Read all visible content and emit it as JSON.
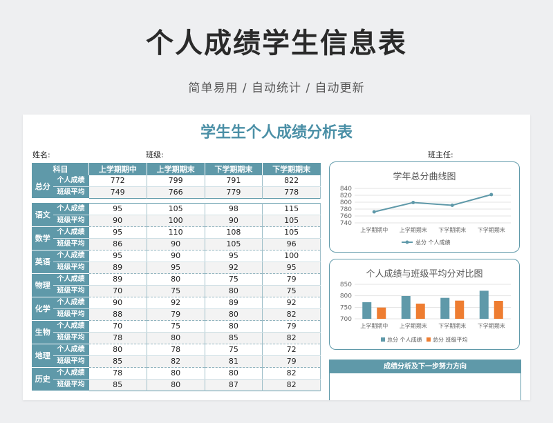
{
  "header": {
    "title": "个人成绩学生信息表",
    "subtitle": "简单易用 / 自动统计 / 自动更新"
  },
  "sheet": {
    "title": "学生生个人成绩分析表",
    "name_label": "姓名:",
    "class_label": "班级:",
    "teacher_label": "班主任:"
  },
  "table": {
    "subject_header": "科目",
    "columns": [
      "上学期期中",
      "上学期期末",
      "下学期期末",
      "下学期期末"
    ],
    "total": {
      "subject": "总分",
      "personal_label": "个人成绩",
      "average_label": "班级平均",
      "personal": [
        "772",
        "799",
        "791",
        "822"
      ],
      "average": [
        "749",
        "766",
        "779",
        "778"
      ]
    },
    "subjects": [
      {
        "subject": "语文",
        "personal_label": "个人成绩",
        "average_label": "班级平均",
        "personal": [
          "95",
          "105",
          "98",
          "115"
        ],
        "average": [
          "90",
          "100",
          "90",
          "105"
        ]
      },
      {
        "subject": "数学",
        "personal_label": "个人成绩",
        "average_label": "班级平均",
        "personal": [
          "95",
          "110",
          "108",
          "105"
        ],
        "average": [
          "86",
          "90",
          "105",
          "96"
        ]
      },
      {
        "subject": "英语",
        "personal_label": "个人成绩",
        "average_label": "班级平均",
        "personal": [
          "95",
          "90",
          "95",
          "100"
        ],
        "average": [
          "89",
          "95",
          "92",
          "95"
        ]
      },
      {
        "subject": "物理",
        "personal_label": "个人成绩",
        "average_label": "班级平均",
        "personal": [
          "89",
          "80",
          "75",
          "79"
        ],
        "average": [
          "70",
          "75",
          "80",
          "75"
        ]
      },
      {
        "subject": "化学",
        "personal_label": "个人成绩",
        "average_label": "班级平均",
        "personal": [
          "90",
          "92",
          "89",
          "92"
        ],
        "average": [
          "88",
          "79",
          "80",
          "82"
        ]
      },
      {
        "subject": "生物",
        "personal_label": "个人成绩",
        "average_label": "班级平均",
        "personal": [
          "70",
          "75",
          "80",
          "79"
        ],
        "average": [
          "78",
          "80",
          "85",
          "82"
        ]
      },
      {
        "subject": "地理",
        "personal_label": "个人成绩",
        "average_label": "班级平均",
        "personal": [
          "80",
          "78",
          "75",
          "72"
        ],
        "average": [
          "85",
          "82",
          "81",
          "79"
        ]
      },
      {
        "subject": "历史",
        "personal_label": "个人成绩",
        "average_label": "班级平均",
        "personal": [
          "78",
          "80",
          "80",
          "82"
        ],
        "average": [
          "85",
          "80",
          "87",
          "82"
        ]
      }
    ]
  },
  "chart_data": [
    {
      "type": "line",
      "title": "学年总分曲线图",
      "categories": [
        "上学期期中",
        "上学期期末",
        "下学期期末",
        "下学期期末"
      ],
      "series": [
        {
          "name": "总分 个人成绩",
          "values": [
            772,
            799,
            791,
            822
          ],
          "color": "#5f99a9"
        }
      ],
      "yticks": [
        740,
        760,
        780,
        800,
        820,
        840
      ],
      "ylim": [
        740,
        840
      ],
      "legend": "bottom",
      "grid": true
    },
    {
      "type": "bar",
      "title": "个人成绩与班级平均分对比图",
      "categories": [
        "上学期期中",
        "上学期期末",
        "下学期期末",
        "下学期期末"
      ],
      "series": [
        {
          "name": "总分 个人成绩",
          "values": [
            772,
            799,
            791,
            822
          ],
          "color": "#5f99a9"
        },
        {
          "name": "总分 班级平均",
          "values": [
            749,
            766,
            779,
            778
          ],
          "color": "#ee7d31"
        }
      ],
      "yticks": [
        700,
        750,
        800,
        850
      ],
      "ylim": [
        700,
        850
      ],
      "legend": "bottom",
      "grid": true
    }
  ],
  "analysis": {
    "title": "成绩分析及下一步努力方向"
  }
}
